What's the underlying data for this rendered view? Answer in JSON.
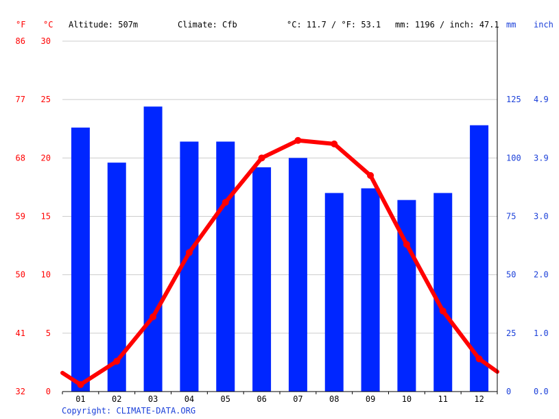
{
  "header": {
    "unit_f": "°F",
    "unit_c": "°C",
    "altitude": "Altitude: 507m",
    "climate": "Climate: Cfb",
    "avg_temp": "°C: 11.7 / °F: 53.1",
    "precip": "mm: 1196 / inch: 47.1",
    "unit_mm": "mm",
    "unit_inch": "inch"
  },
  "footer": {
    "copyright": "Copyright: CLIMATE-DATA.ORG"
  },
  "colors": {
    "temp": "#ff0000",
    "precip": "#0026ff",
    "label_blue": "#1a3fd9",
    "grid": "#cccccc"
  },
  "chart_data": {
    "type": "bar",
    "categories": [
      "01",
      "02",
      "03",
      "04",
      "05",
      "06",
      "07",
      "08",
      "09",
      "10",
      "11",
      "12"
    ],
    "series": [
      {
        "type": "bar",
        "axis": "precipitation_mm",
        "values": [
          113,
          98,
          122,
          107,
          107,
          96,
          100,
          85,
          87,
          82,
          85,
          114
        ]
      },
      {
        "type": "line",
        "axis": "temperature_c",
        "values": [
          0.6,
          2.6,
          6.4,
          11.9,
          16.2,
          20.0,
          21.5,
          21.2,
          18.5,
          12.6,
          6.9,
          2.8
        ],
        "edge_start": 1.6,
        "edge_end": 1.7
      }
    ],
    "axes": {
      "temperature_c": {
        "ticks": [
          "0",
          "5",
          "10",
          "15",
          "20",
          "25",
          "30"
        ],
        "range": [
          0,
          30
        ]
      },
      "temperature_f": {
        "ticks": [
          "32",
          "41",
          "50",
          "59",
          "68",
          "77",
          "86"
        ]
      },
      "precipitation_mm": {
        "ticks": [
          "0",
          "25",
          "50",
          "75",
          "100",
          "125"
        ],
        "range": [
          0,
          150
        ]
      },
      "precipitation_inch": {
        "ticks": [
          "0.0",
          "1.0",
          "2.0",
          "3.0",
          "3.9",
          "4.9"
        ]
      }
    },
    "grid": true
  }
}
